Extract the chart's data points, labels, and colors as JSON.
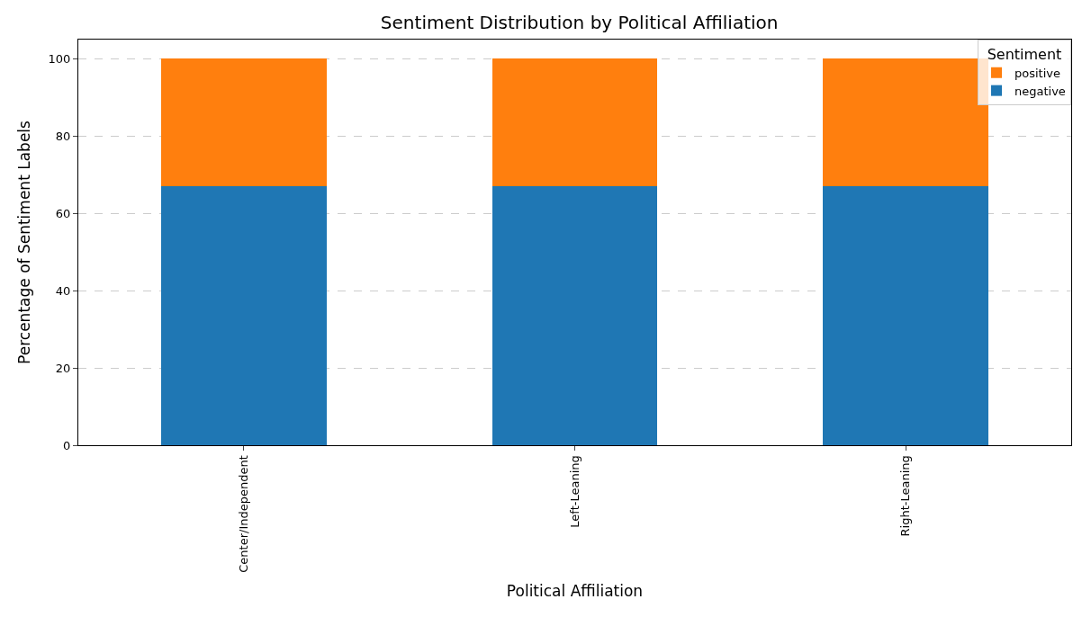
{
  "chart_data": {
    "type": "bar",
    "title": "Sentiment Distribution by Political Affiliation",
    "xlabel": "Political Affiliation",
    "ylabel": "Percentage of Sentiment Labels",
    "legend_title": "Sentiment",
    "categories": [
      "Center/Independent",
      "Left-Leaning",
      "Right-Leaning"
    ],
    "series": [
      {
        "name": "negative",
        "color": "#1f77b4",
        "values": [
          67,
          67,
          67
        ]
      },
      {
        "name": "positive",
        "color": "#ff7f0e",
        "values": [
          33,
          33,
          33
        ]
      }
    ],
    "stacked": true,
    "ylim": [
      0,
      105
    ],
    "yticks": [
      0,
      20,
      40,
      60,
      80,
      100
    ],
    "grid": "y",
    "legend": "top right"
  }
}
